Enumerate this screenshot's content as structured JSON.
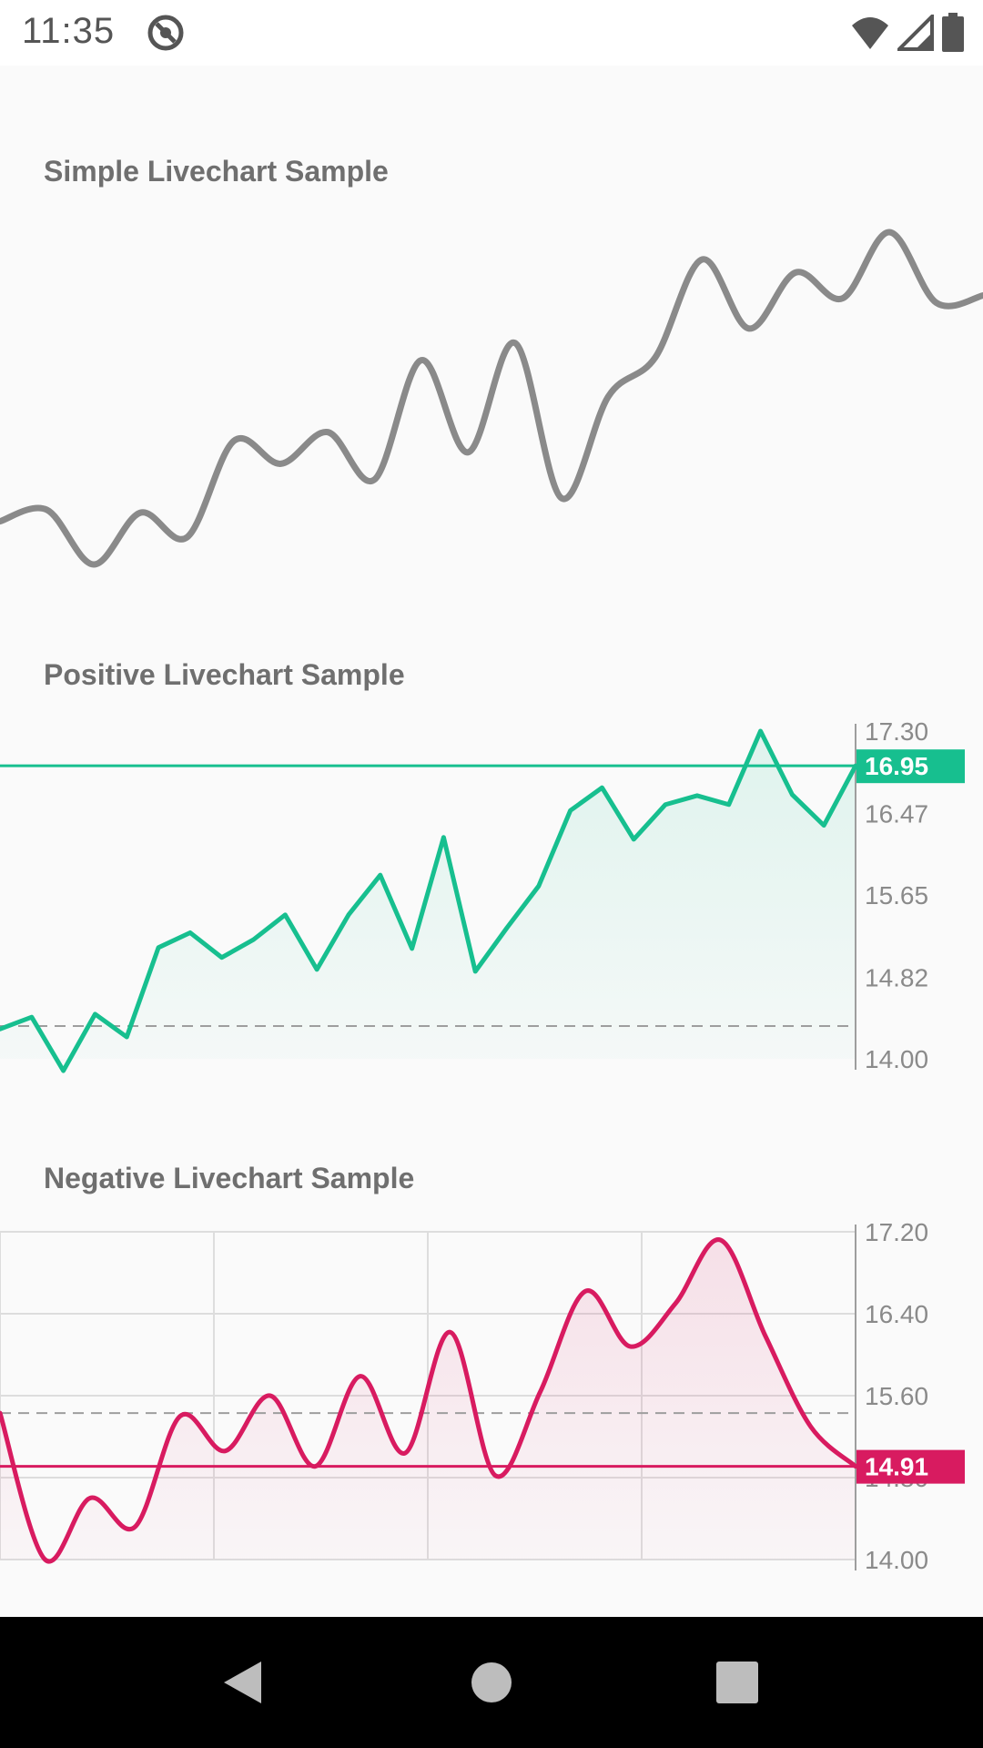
{
  "status_bar": {
    "time": "11:35",
    "icons": [
      "app-icon",
      "wifi-icon",
      "signal-icon",
      "battery-icon"
    ]
  },
  "sections": {
    "simple_title": "Simple Livechart Sample",
    "positive_title": "Positive Livechart Sample",
    "negative_title": "Negative Livechart Sample"
  },
  "colors": {
    "simple_line": "#8a8a8a",
    "positive": "#17bf8f",
    "negative": "#d81b60"
  },
  "chart_data": [
    {
      "type": "line",
      "style": "smooth",
      "title": "Simple Livechart Sample",
      "axis": false,
      "values": [
        14.54,
        14.62,
        14.24,
        14.6,
        14.43,
        15.1,
        14.94,
        15.16,
        14.83,
        15.66,
        15.02,
        15.78,
        14.7,
        15.41,
        15.68,
        16.36,
        15.88,
        16.27,
        16.09,
        16.55,
        16.06,
        16.11
      ]
    },
    {
      "type": "line",
      "style": "linear-area",
      "title": "Positive Livechart Sample",
      "y_ticks": [
        "17.30",
        "16.47",
        "15.65",
        "14.82",
        "14.00"
      ],
      "ylim": [
        14.0,
        17.3
      ],
      "baseline": 14.33,
      "current_value": "16.95",
      "grid": false,
      "values": [
        14.3,
        14.42,
        13.88,
        14.45,
        14.22,
        15.12,
        15.27,
        15.02,
        15.2,
        15.45,
        14.9,
        15.45,
        15.85,
        15.11,
        16.23,
        14.88,
        15.32,
        15.74,
        16.5,
        16.73,
        16.21,
        16.56,
        16.65,
        16.56,
        17.3,
        16.66,
        16.35,
        16.95
      ]
    },
    {
      "type": "line",
      "style": "smooth-area",
      "title": "Negative Livechart Sample",
      "y_ticks": [
        "17.20",
        "16.40",
        "15.60",
        "14.80",
        "14.00"
      ],
      "ylim": [
        14.0,
        17.2
      ],
      "baseline": 15.43,
      "current_value": "14.91",
      "grid": true,
      "values": [
        15.43,
        14.0,
        14.6,
        14.32,
        15.4,
        15.06,
        15.6,
        14.91,
        15.79,
        15.04,
        16.22,
        14.82,
        15.64,
        16.62,
        16.08,
        16.5,
        17.12,
        16.18,
        15.3,
        14.91
      ]
    }
  ]
}
